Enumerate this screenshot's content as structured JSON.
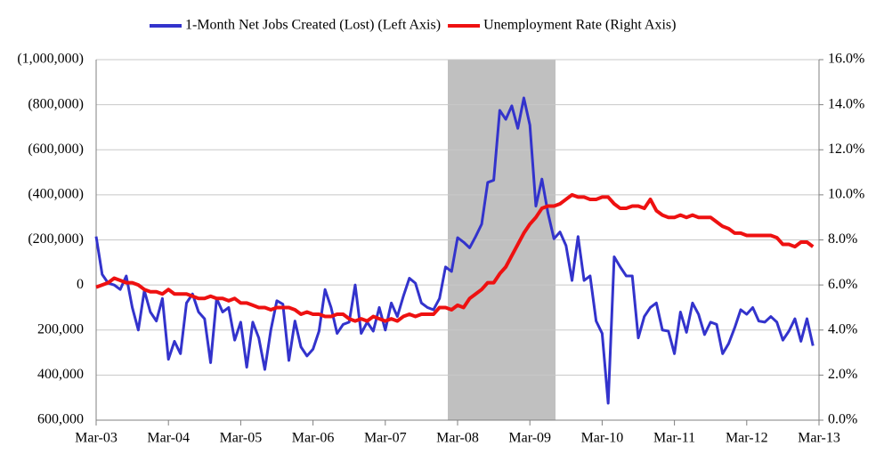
{
  "chart_data": {
    "type": "line",
    "categories": [
      "Mar-03",
      null,
      null,
      null,
      null,
      null,
      null,
      null,
      null,
      null,
      null,
      null,
      "Mar-04",
      null,
      null,
      null,
      null,
      null,
      null,
      null,
      null,
      null,
      null,
      null,
      "Mar-05",
      null,
      null,
      null,
      null,
      null,
      null,
      null,
      null,
      null,
      null,
      null,
      "Mar-06",
      null,
      null,
      null,
      null,
      null,
      null,
      null,
      null,
      null,
      null,
      null,
      "Mar-07",
      null,
      null,
      null,
      null,
      null,
      null,
      null,
      null,
      null,
      null,
      null,
      "Mar-08",
      null,
      null,
      null,
      null,
      null,
      null,
      null,
      null,
      null,
      null,
      null,
      "Mar-09",
      null,
      null,
      null,
      null,
      null,
      null,
      null,
      null,
      null,
      null,
      null,
      "Mar-10",
      null,
      null,
      null,
      null,
      null,
      null,
      null,
      null,
      null,
      null,
      null,
      "Mar-11",
      null,
      null,
      null,
      null,
      null,
      null,
      null,
      null,
      null,
      null,
      null,
      "Mar-12",
      null,
      null,
      null,
      null,
      null,
      null,
      null,
      null,
      null,
      null,
      null,
      "Mar-13"
    ],
    "series": [
      {
        "name": "1-Month Net Jobs Created (Lost) (Left Axis)",
        "color": "#3333cc",
        "axis": "y",
        "values": [
          -215000,
          -47000,
          -8000,
          0,
          20000,
          -40000,
          100000,
          200000,
          25000,
          120000,
          160000,
          60000,
          330000,
          250000,
          305000,
          80000,
          40000,
          120000,
          150000,
          345000,
          60000,
          120000,
          100000,
          245000,
          165000,
          365000,
          165000,
          235000,
          375000,
          200000,
          70000,
          85000,
          335000,
          160000,
          275000,
          315000,
          285000,
          205000,
          20000,
          100000,
          215000,
          175000,
          165000,
          0,
          215000,
          165000,
          205000,
          100000,
          200000,
          80000,
          140000,
          50000,
          -30000,
          -8000,
          80000,
          100000,
          110000,
          60000,
          -80000,
          -60000,
          -210000,
          -190000,
          -165000,
          -215000,
          -270000,
          -455000,
          -465000,
          -775000,
          -735000,
          -795000,
          -695000,
          -830000,
          -710000,
          -350000,
          -470000,
          -320000,
          -205000,
          -235000,
          -175000,
          -20000,
          -215000,
          -20000,
          -40000,
          160000,
          215000,
          525000,
          -125000,
          -80000,
          -40000,
          -40000,
          235000,
          140000,
          100000,
          80000,
          200000,
          205000,
          305000,
          120000,
          210000,
          80000,
          130000,
          220000,
          165000,
          175000,
          305000,
          260000,
          190000,
          110000,
          130000,
          100000,
          160000,
          165000,
          140000,
          165000,
          245000,
          205000,
          150000,
          250000,
          150000,
          270000,
          null
        ]
      },
      {
        "name": "Unemployment Rate (Right Axis)",
        "color": "#ee1111",
        "axis": "y2",
        "values": [
          5.9,
          6.0,
          6.1,
          6.3,
          6.2,
          6.1,
          6.1,
          6.0,
          5.8,
          5.7,
          5.7,
          5.6,
          5.8,
          5.6,
          5.6,
          5.6,
          5.5,
          5.4,
          5.4,
          5.5,
          5.4,
          5.4,
          5.3,
          5.4,
          5.2,
          5.2,
          5.1,
          5.0,
          5.0,
          4.9,
          5.0,
          5.0,
          5.0,
          4.9,
          4.7,
          4.8,
          4.7,
          4.7,
          4.6,
          4.6,
          4.7,
          4.7,
          4.5,
          4.4,
          4.5,
          4.4,
          4.6,
          4.5,
          4.4,
          4.5,
          4.4,
          4.6,
          4.7,
          4.6,
          4.7,
          4.7,
          4.7,
          5.0,
          5.0,
          4.9,
          5.1,
          5.0,
          5.4,
          5.6,
          5.8,
          6.1,
          6.1,
          6.5,
          6.8,
          7.3,
          7.8,
          8.3,
          8.7,
          9.0,
          9.4,
          9.5,
          9.5,
          9.6,
          9.8,
          10.0,
          9.9,
          9.9,
          9.8,
          9.8,
          9.9,
          9.9,
          9.6,
          9.4,
          9.4,
          9.5,
          9.5,
          9.4,
          9.8,
          9.3,
          9.1,
          9.0,
          9.0,
          9.1,
          9.0,
          9.1,
          9.0,
          9.0,
          9.0,
          8.8,
          8.6,
          8.5,
          8.3,
          8.3,
          8.2,
          8.2,
          8.2,
          8.2,
          8.2,
          8.1,
          7.8,
          7.8,
          7.7,
          7.9,
          7.9,
          7.7,
          null
        ]
      }
    ],
    "ylim": [
      -1000000,
      600000
    ],
    "y_reversed": true,
    "yticks": [
      {
        "value": -1000000,
        "label": "(1,000,000)"
      },
      {
        "value": -800000,
        "label": "(800,000)"
      },
      {
        "value": -600000,
        "label": "(600,000)"
      },
      {
        "value": -400000,
        "label": "(400,000)"
      },
      {
        "value": -200000,
        "label": "(200,000)"
      },
      0,
      {
        "value": 200000,
        "label": "200,000"
      },
      {
        "value": 400000,
        "label": "400,000"
      },
      {
        "value": 600000,
        "label": "600,000"
      }
    ],
    "y2lim": [
      0,
      16
    ],
    "y2ticks": [
      {
        "value": 0,
        "label": "0.0%"
      },
      {
        "value": 2,
        "label": "2.0%"
      },
      {
        "value": 4,
        "label": "4.0%"
      },
      {
        "value": 6,
        "label": "6.0%"
      },
      {
        "value": 8,
        "label": "8.0%"
      },
      {
        "value": 10,
        "label": "10.0%"
      },
      {
        "value": 12,
        "label": "12.0%"
      },
      {
        "value": 14,
        "label": "14.0%"
      },
      {
        "value": 16,
        "label": "16.0%"
      }
    ],
    "grid": true,
    "legend": "top"
  }
}
